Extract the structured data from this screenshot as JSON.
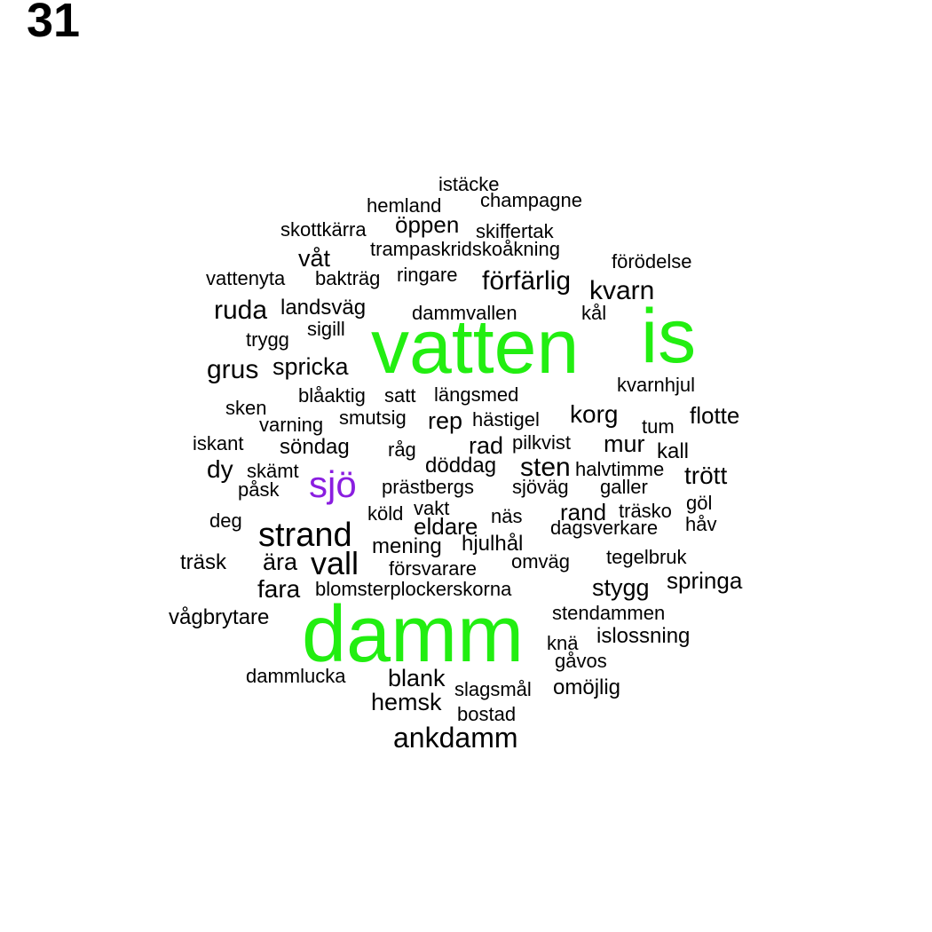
{
  "page_number": "31",
  "colors": {
    "default": "#000000",
    "green": "#22ee11",
    "purple": "#8a1ee0"
  },
  "words": [
    {
      "text": "istäcke",
      "color": "default"
    },
    {
      "text": "champagne",
      "color": "default"
    },
    {
      "text": "hemland",
      "color": "default"
    },
    {
      "text": "öppen",
      "color": "default"
    },
    {
      "text": "skottkärra",
      "color": "default"
    },
    {
      "text": "skiffertak",
      "color": "default"
    },
    {
      "text": "trampaskridskoåkning",
      "color": "default"
    },
    {
      "text": "våt",
      "color": "default"
    },
    {
      "text": "förödelse",
      "color": "default"
    },
    {
      "text": "vattenyta",
      "color": "default"
    },
    {
      "text": "bakträg",
      "color": "default"
    },
    {
      "text": "ringare",
      "color": "default"
    },
    {
      "text": "förfärlig",
      "color": "default"
    },
    {
      "text": "kvarn",
      "color": "default"
    },
    {
      "text": "ruda",
      "color": "default"
    },
    {
      "text": "landsväg",
      "color": "default"
    },
    {
      "text": "dammvallen",
      "color": "default"
    },
    {
      "text": "kål",
      "color": "default"
    },
    {
      "text": "trygg",
      "color": "default"
    },
    {
      "text": "sigill",
      "color": "default"
    },
    {
      "text": "vatten",
      "color": "green"
    },
    {
      "text": "is",
      "color": "green"
    },
    {
      "text": "grus",
      "color": "default"
    },
    {
      "text": "spricka",
      "color": "default"
    },
    {
      "text": "kvarnhjul",
      "color": "default"
    },
    {
      "text": "blåaktig",
      "color": "default"
    },
    {
      "text": "satt",
      "color": "default"
    },
    {
      "text": "längsmed",
      "color": "default"
    },
    {
      "text": "sken",
      "color": "default"
    },
    {
      "text": "smutsig",
      "color": "default"
    },
    {
      "text": "rep",
      "color": "default"
    },
    {
      "text": "hästigel",
      "color": "default"
    },
    {
      "text": "korg",
      "color": "default"
    },
    {
      "text": "flotte",
      "color": "default"
    },
    {
      "text": "varning",
      "color": "default"
    },
    {
      "text": "tum",
      "color": "default"
    },
    {
      "text": "iskant",
      "color": "default"
    },
    {
      "text": "söndag",
      "color": "default"
    },
    {
      "text": "råg",
      "color": "default"
    },
    {
      "text": "rad",
      "color": "default"
    },
    {
      "text": "pilkvist",
      "color": "default"
    },
    {
      "text": "mur",
      "color": "default"
    },
    {
      "text": "kall",
      "color": "default"
    },
    {
      "text": "dy",
      "color": "default"
    },
    {
      "text": "skämt",
      "color": "default"
    },
    {
      "text": "döddag",
      "color": "default"
    },
    {
      "text": "sten",
      "color": "default"
    },
    {
      "text": "halvtimme",
      "color": "default"
    },
    {
      "text": "trött",
      "color": "default"
    },
    {
      "text": "sjö",
      "color": "purple"
    },
    {
      "text": "påsk",
      "color": "default"
    },
    {
      "text": "prästbergs",
      "color": "default"
    },
    {
      "text": "sjöväg",
      "color": "default"
    },
    {
      "text": "galler",
      "color": "default"
    },
    {
      "text": "göl",
      "color": "default"
    },
    {
      "text": "vakt",
      "color": "default"
    },
    {
      "text": "rand",
      "color": "default"
    },
    {
      "text": "träsko",
      "color": "default"
    },
    {
      "text": "deg",
      "color": "default"
    },
    {
      "text": "köld",
      "color": "default"
    },
    {
      "text": "näs",
      "color": "default"
    },
    {
      "text": "eldare",
      "color": "default"
    },
    {
      "text": "dagsverkare",
      "color": "default"
    },
    {
      "text": "håv",
      "color": "default"
    },
    {
      "text": "strand",
      "color": "default"
    },
    {
      "text": "mening",
      "color": "default"
    },
    {
      "text": "hjulhål",
      "color": "default"
    },
    {
      "text": "träsk",
      "color": "default"
    },
    {
      "text": "ära",
      "color": "default"
    },
    {
      "text": "vall",
      "color": "default"
    },
    {
      "text": "omväg",
      "color": "default"
    },
    {
      "text": "tegelbruk",
      "color": "default"
    },
    {
      "text": "försvarare",
      "color": "default"
    },
    {
      "text": "springa",
      "color": "default"
    },
    {
      "text": "fara",
      "color": "default"
    },
    {
      "text": "blomsterplockerskorna",
      "color": "default"
    },
    {
      "text": "stygg",
      "color": "default"
    },
    {
      "text": "stendammen",
      "color": "default"
    },
    {
      "text": "vågbrytare",
      "color": "default"
    },
    {
      "text": "damm",
      "color": "green"
    },
    {
      "text": "islossning",
      "color": "default"
    },
    {
      "text": "knä",
      "color": "default"
    },
    {
      "text": "gåvos",
      "color": "default"
    },
    {
      "text": "dammlucka",
      "color": "default"
    },
    {
      "text": "blank",
      "color": "default"
    },
    {
      "text": "slagsmål",
      "color": "default"
    },
    {
      "text": "omöjlig",
      "color": "default"
    },
    {
      "text": "hemsk",
      "color": "default"
    },
    {
      "text": "bostad",
      "color": "default"
    },
    {
      "text": "ankdamm",
      "color": "default"
    }
  ]
}
